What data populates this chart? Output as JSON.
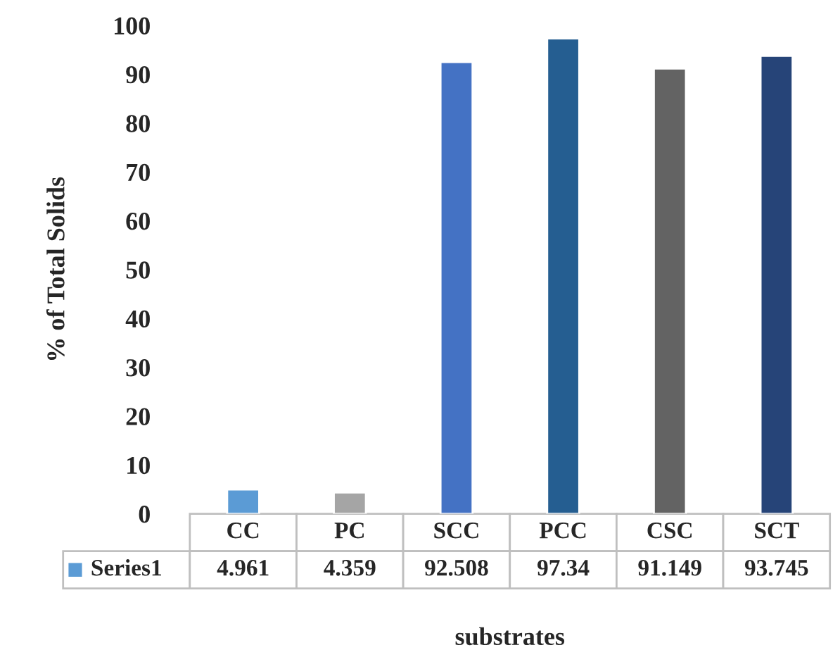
{
  "chart_data": {
    "type": "bar",
    "xlabel": "substrates",
    "ylabel": "% of Total Solids",
    "categories": [
      "CC",
      "PC",
      "SCC",
      "PCC",
      "CSC",
      "SCT"
    ],
    "series": [
      {
        "name": "Series1",
        "color": "#5b9bd5",
        "colors": [
          "#5b9bd5",
          "#a5a5a5",
          "#4472c4",
          "#255e91",
          "#636363",
          "#264478"
        ],
        "values": [
          4.961,
          4.359,
          92.508,
          97.34,
          91.149,
          93.745
        ]
      }
    ],
    "ylim": [
      0,
      100
    ],
    "yticks": [
      0,
      10,
      20,
      30,
      40,
      50,
      60,
      70,
      80,
      90,
      100
    ],
    "grid": false,
    "data_labels": true
  }
}
